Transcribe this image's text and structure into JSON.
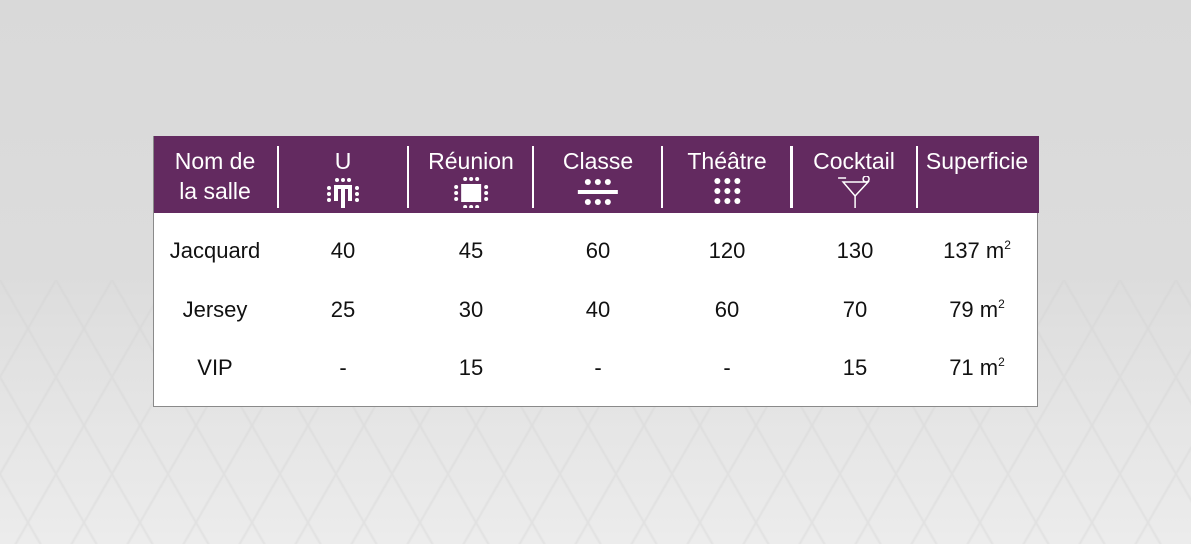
{
  "colors": {
    "header": "#632a60",
    "header_text": "#ffffff"
  },
  "headers": [
    {
      "line1": "Nom de",
      "line2": "la salle"
    },
    {
      "label": "U",
      "icon": "u-shape-layout-icon"
    },
    {
      "label": "Réunion",
      "icon": "boardroom-layout-icon"
    },
    {
      "label": "Classe",
      "icon": "classroom-layout-icon"
    },
    {
      "label": "Théâtre",
      "icon": "theatre-layout-icon"
    },
    {
      "label": "Cocktail",
      "icon": "cocktail-glass-icon"
    },
    {
      "label": "Superficie"
    }
  ],
  "rows": [
    {
      "name": "Jacquard",
      "u": "40",
      "reunion": "45",
      "classe": "60",
      "theatre": "120",
      "cocktail": "130",
      "superficie": "137 m",
      "unit_exp": "2"
    },
    {
      "name": "Jersey",
      "u": "25",
      "reunion": "30",
      "classe": "40",
      "theatre": "60",
      "cocktail": "70",
      "superficie": "79 m",
      "unit_exp": "2"
    },
    {
      "name": "VIP",
      "u": "-",
      "reunion": "15",
      "classe": "-",
      "theatre": "-",
      "cocktail": "15",
      "superficie": "71 m",
      "unit_exp": "2"
    }
  ]
}
